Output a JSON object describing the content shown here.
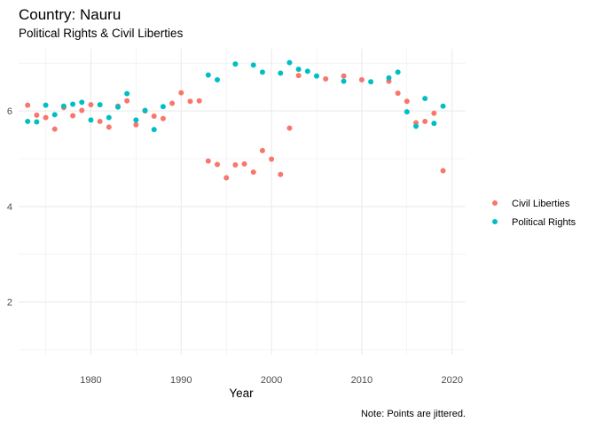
{
  "title": "Country: Nauru",
  "subtitle": "Political Rights & Civil Liberties",
  "caption": "Note: Points are jittered.",
  "chart_data": {
    "type": "scatter",
    "xlabel": "Year",
    "ylabel": "",
    "xlim": [
      1972,
      2021.5
    ],
    "ylim": [
      0.9,
      7.3
    ],
    "x_ticks": [
      1980,
      1990,
      2000,
      2010,
      2020
    ],
    "y_ticks": [
      2,
      4,
      6
    ],
    "grid": true,
    "legend_position": "right",
    "series": [
      {
        "name": "Civil Liberties",
        "color": "#F8766D",
        "points": [
          [
            1973,
            6.12
          ],
          [
            1974,
            5.91
          ],
          [
            1975,
            5.86
          ],
          [
            1976,
            5.62
          ],
          [
            1977,
            6.07
          ],
          [
            1978,
            5.9
          ],
          [
            1979,
            6.01
          ],
          [
            1980,
            6.13
          ],
          [
            1981,
            5.78
          ],
          [
            1982,
            5.66
          ],
          [
            1983,
            6.1
          ],
          [
            1984,
            6.21
          ],
          [
            1985,
            5.71
          ],
          [
            1986,
            6.0
          ],
          [
            1987,
            5.89
          ],
          [
            1988,
            5.84
          ],
          [
            1989,
            6.16
          ],
          [
            1990,
            6.38
          ],
          [
            1991,
            6.2
          ],
          [
            1992,
            6.21
          ],
          [
            1993,
            4.95
          ],
          [
            1994,
            4.88
          ],
          [
            1995,
            4.6
          ],
          [
            1996,
            4.87
          ],
          [
            1997,
            4.89
          ],
          [
            1998,
            4.72
          ],
          [
            1999,
            5.17
          ],
          [
            2000,
            4.99
          ],
          [
            2001,
            4.67
          ],
          [
            2002,
            5.64
          ],
          [
            2003,
            6.74
          ],
          [
            2006,
            6.67
          ],
          [
            2008,
            6.73
          ],
          [
            2010,
            6.65
          ],
          [
            2013,
            6.62
          ],
          [
            2014,
            6.37
          ],
          [
            2015,
            6.2
          ],
          [
            2016,
            5.75
          ],
          [
            2017,
            5.78
          ],
          [
            2018,
            5.95
          ],
          [
            2019,
            4.75
          ]
        ]
      },
      {
        "name": "Political Rights",
        "color": "#00BFC4",
        "points": [
          [
            1973,
            5.78
          ],
          [
            1974,
            5.77
          ],
          [
            1975,
            6.12
          ],
          [
            1976,
            5.92
          ],
          [
            1977,
            6.1
          ],
          [
            1978,
            6.14
          ],
          [
            1979,
            6.18
          ],
          [
            1980,
            5.81
          ],
          [
            1981,
            6.13
          ],
          [
            1982,
            5.86
          ],
          [
            1983,
            6.08
          ],
          [
            1984,
            6.36
          ],
          [
            1985,
            5.81
          ],
          [
            1986,
            6.01
          ],
          [
            1987,
            5.61
          ],
          [
            1988,
            6.09
          ],
          [
            1993,
            6.75
          ],
          [
            1994,
            6.65
          ],
          [
            1996,
            6.98
          ],
          [
            1998,
            6.96
          ],
          [
            1999,
            6.81
          ],
          [
            2001,
            6.79
          ],
          [
            2002,
            7.01
          ],
          [
            2003,
            6.87
          ],
          [
            2004,
            6.83
          ],
          [
            2005,
            6.73
          ],
          [
            2008,
            6.62
          ],
          [
            2011,
            6.61
          ],
          [
            2013,
            6.69
          ],
          [
            2014,
            6.81
          ],
          [
            2015,
            5.98
          ],
          [
            2016,
            5.68
          ],
          [
            2017,
            6.26
          ],
          [
            2018,
            5.74
          ],
          [
            2019,
            6.1
          ]
        ]
      }
    ]
  }
}
